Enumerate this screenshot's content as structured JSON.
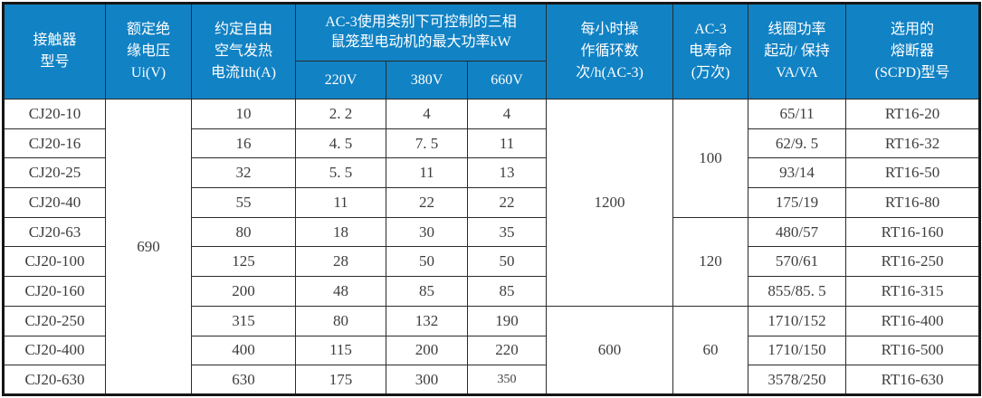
{
  "table": {
    "title_semantic": "CJ20 contactor technical specification table",
    "colors": {
      "header_bg": "#1182c4",
      "header_text": "#ffffff",
      "border": "#2b2b2b",
      "outer_border": "#161616",
      "body_text": "#3d3d3d"
    },
    "header": {
      "model": "接触器\n型号",
      "ui": "额定绝\n缘电压\nUi(V)",
      "ith": "约定自由\n空气发热\n电流Ith(A)",
      "ac3_power_group": "AC-3使用类别下可控制的三相\n鼠笼型电动机的最大功率kW",
      "v220": "220V",
      "v380": "380V",
      "v660": "660V",
      "cycles": "每小时操\n作循环数\n次/h(AC-3)",
      "life": "AC-3\n电寿命\n(万次)",
      "coil": "线圈功率\n起动/ 保持\nVA/VA",
      "fuse": "选用的\n熔断器\n(SCPD)型号"
    },
    "rows": [
      {
        "cells": [
          {
            "name": "model",
            "text": "CJ20-10"
          },
          {
            "name": "ui",
            "text": "690",
            "rowspan": 10
          },
          {
            "name": "ith",
            "text": "10"
          },
          {
            "name": "kw-220",
            "text": "2. 2"
          },
          {
            "name": "kw-380",
            "text": "4"
          },
          {
            "name": "kw-660",
            "text": "4"
          },
          {
            "name": "cycles",
            "text": "1200",
            "rowspan": 7
          },
          {
            "name": "life",
            "text": "100",
            "rowspan": 4
          },
          {
            "name": "coil",
            "text": "65/11"
          },
          {
            "name": "fuse",
            "text": "RT16-20"
          }
        ]
      },
      {
        "cells": [
          {
            "name": "model",
            "text": "CJ20-16"
          },
          {
            "name": "ith",
            "text": "16"
          },
          {
            "name": "kw-220",
            "text": "4. 5"
          },
          {
            "name": "kw-380",
            "text": "7. 5"
          },
          {
            "name": "kw-660",
            "text": "11"
          },
          {
            "name": "coil",
            "text": "62/9. 5"
          },
          {
            "name": "fuse",
            "text": "RT16-32"
          }
        ]
      },
      {
        "cells": [
          {
            "name": "model",
            "text": "CJ20-25"
          },
          {
            "name": "ith",
            "text": "32"
          },
          {
            "name": "kw-220",
            "text": "5. 5"
          },
          {
            "name": "kw-380",
            "text": "11"
          },
          {
            "name": "kw-660",
            "text": "13"
          },
          {
            "name": "coil",
            "text": "93/14"
          },
          {
            "name": "fuse",
            "text": "RT16-50"
          }
        ]
      },
      {
        "cells": [
          {
            "name": "model",
            "text": "CJ20-40"
          },
          {
            "name": "ith",
            "text": "55"
          },
          {
            "name": "kw-220",
            "text": "11"
          },
          {
            "name": "kw-380",
            "text": "22"
          },
          {
            "name": "kw-660",
            "text": "22"
          },
          {
            "name": "coil",
            "text": "175/19"
          },
          {
            "name": "fuse",
            "text": "RT16-80"
          }
        ]
      },
      {
        "cells": [
          {
            "name": "model",
            "text": "CJ20-63"
          },
          {
            "name": "ith",
            "text": "80"
          },
          {
            "name": "kw-220",
            "text": "18"
          },
          {
            "name": "kw-380",
            "text": "30"
          },
          {
            "name": "kw-660",
            "text": "35"
          },
          {
            "name": "life",
            "text": "120",
            "rowspan": 3
          },
          {
            "name": "coil",
            "text": "480/57"
          },
          {
            "name": "fuse",
            "text": "RT16-160"
          }
        ]
      },
      {
        "cells": [
          {
            "name": "model",
            "text": "CJ20-100"
          },
          {
            "name": "ith",
            "text": "125"
          },
          {
            "name": "kw-220",
            "text": "28"
          },
          {
            "name": "kw-380",
            "text": "50"
          },
          {
            "name": "kw-660",
            "text": "50"
          },
          {
            "name": "coil",
            "text": "570/61"
          },
          {
            "name": "fuse",
            "text": "RT16-250"
          }
        ]
      },
      {
        "cells": [
          {
            "name": "model",
            "text": "CJ20-160"
          },
          {
            "name": "ith",
            "text": "200"
          },
          {
            "name": "kw-220",
            "text": "48"
          },
          {
            "name": "kw-380",
            "text": "85"
          },
          {
            "name": "kw-660",
            "text": "85"
          },
          {
            "name": "coil",
            "text": "855/85. 5"
          },
          {
            "name": "fuse",
            "text": "RT16-315"
          }
        ]
      },
      {
        "cells": [
          {
            "name": "model",
            "text": "CJ20-250"
          },
          {
            "name": "ith",
            "text": "315"
          },
          {
            "name": "kw-220",
            "text": "80"
          },
          {
            "name": "kw-380",
            "text": "132"
          },
          {
            "name": "kw-660",
            "text": "190"
          },
          {
            "name": "cycles",
            "text": "600",
            "rowspan": 3
          },
          {
            "name": "life",
            "text": "60",
            "rowspan": 3
          },
          {
            "name": "coil",
            "text": "1710/152"
          },
          {
            "name": "fuse",
            "text": "RT16-400"
          }
        ]
      },
      {
        "cells": [
          {
            "name": "model",
            "text": "CJ20-400"
          },
          {
            "name": "ith",
            "text": "400"
          },
          {
            "name": "kw-220",
            "text": "115"
          },
          {
            "name": "kw-380",
            "text": "200"
          },
          {
            "name": "kw-660",
            "text": "220"
          },
          {
            "name": "coil",
            "text": "1710/150"
          },
          {
            "name": "fuse",
            "text": "RT16-500"
          }
        ]
      },
      {
        "cells": [
          {
            "name": "model",
            "text": "CJ20-630"
          },
          {
            "name": "ith",
            "text": "630"
          },
          {
            "name": "kw-220",
            "text": "175"
          },
          {
            "name": "kw-380",
            "text": "300"
          },
          {
            "name": "kw-660",
            "text": "350",
            "small": true
          },
          {
            "name": "coil",
            "text": "3578/250"
          },
          {
            "name": "fuse",
            "text": "RT16-630"
          }
        ]
      }
    ]
  }
}
